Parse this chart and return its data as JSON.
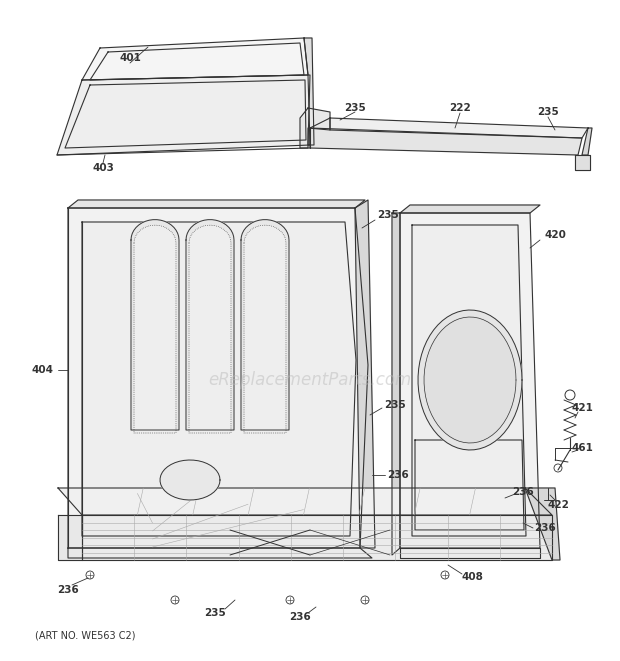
{
  "bg_color": "#ffffff",
  "line_color": "#333333",
  "watermark": "eReplacementParts.com",
  "watermark_color": "#cccccc",
  "bottom_text": "(ART NO. WE563 C2)",
  "label_fontsize": 7.5,
  "lw": 0.8
}
